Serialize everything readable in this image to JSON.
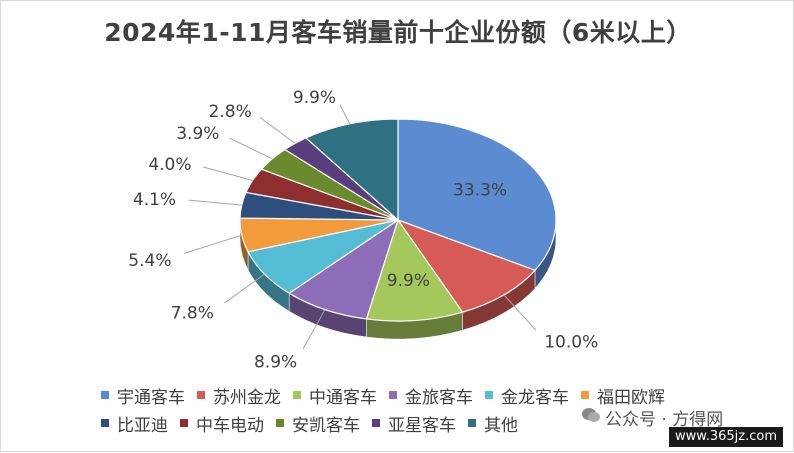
{
  "chart_data": {
    "type": "pie",
    "title": "2024年1-11月客车销量前十企业份额（6米以上）",
    "slices": [
      {
        "label": "宇通客车",
        "value": 33.3,
        "display": "33.3%",
        "color": "#5B8BD0"
      },
      {
        "label": "苏州金龙",
        "value": 10.0,
        "display": "10.0%",
        "color": "#D65A56"
      },
      {
        "label": "中通客车",
        "value": 9.9,
        "display": "9.9%",
        "color": "#A5C85C"
      },
      {
        "label": "金旅客车",
        "value": 8.9,
        "display": "8.9%",
        "color": "#8E6DB8"
      },
      {
        "label": "金龙客车",
        "value": 7.8,
        "display": "7.8%",
        "color": "#55BCD6"
      },
      {
        "label": "福田欧辉",
        "value": 5.4,
        "display": "5.4%",
        "color": "#F29B3C"
      },
      {
        "label": "比亚迪",
        "value": 4.1,
        "display": "4.1%",
        "color": "#2E4E7E"
      },
      {
        "label": "中车电动",
        "value": 4.0,
        "display": "4.0%",
        "color": "#8E2E2E"
      },
      {
        "label": "安凯客车",
        "value": 3.9,
        "display": "3.9%",
        "color": "#6A8A2E"
      },
      {
        "label": "亚星客车",
        "value": 2.8,
        "display": "2.8%",
        "color": "#5B3E7E"
      },
      {
        "label": "其他",
        "value": 9.9,
        "display": "9.9%",
        "color": "#2E7183"
      }
    ],
    "legend_position": "bottom"
  },
  "watermark": {
    "top_text": "公众号 · 方得网",
    "bottom_text": "www.365jz.com"
  }
}
